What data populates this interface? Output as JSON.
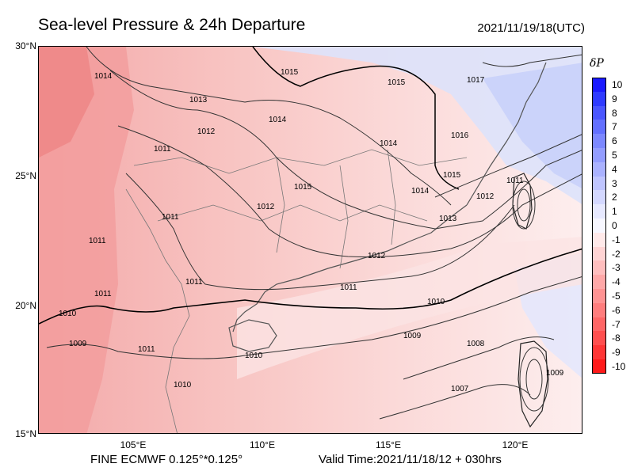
{
  "title": "Sea-level Pressure & 24h Departure",
  "datetime": "2021/11/19/18(UTC)",
  "footer": {
    "model": "FINE ECMWF 0.125°*0.125°",
    "valid": "Valid Time:2021/11/18/12 + 030hrs"
  },
  "axes": {
    "lat_ticks": [
      "30°N",
      "25°N",
      "20°N",
      "15°N"
    ],
    "lon_ticks": [
      "105°E",
      "110°E",
      "115°E",
      "120°E"
    ]
  },
  "legend": {
    "title": "δP",
    "labels": [
      "10",
      "9",
      "8",
      "7",
      "6",
      "5",
      "4",
      "3",
      "2",
      "1",
      "0",
      "-1",
      "-2",
      "-3",
      "-4",
      "-5",
      "-6",
      "-7",
      "-8",
      "-9",
      "-10"
    ],
    "colors": [
      "#1a1aff",
      "#2f3bff",
      "#4a56ff",
      "#6370ff",
      "#7c88ff",
      "#939dff",
      "#aab2ff",
      "#bfc5ff",
      "#d4d8ff",
      "#e7e9ff",
      "#f7f7ff",
      "#ffe9e9",
      "#ffd4d4",
      "#ffbebe",
      "#ffa8a8",
      "#ff9393",
      "#ff7d7d",
      "#ff6666",
      "#ff4f4f",
      "#ff3636",
      "#ff1a1a"
    ]
  },
  "contour_labels": [
    {
      "text": "1014"
    },
    {
      "text": "1013"
    },
    {
      "text": "1012"
    },
    {
      "text": "1011"
    },
    {
      "text": "1015"
    },
    {
      "text": "1016"
    },
    {
      "text": "1017"
    },
    {
      "text": "1010"
    },
    {
      "text": "1009"
    },
    {
      "text": "1008"
    },
    {
      "text": "1007"
    }
  ]
}
